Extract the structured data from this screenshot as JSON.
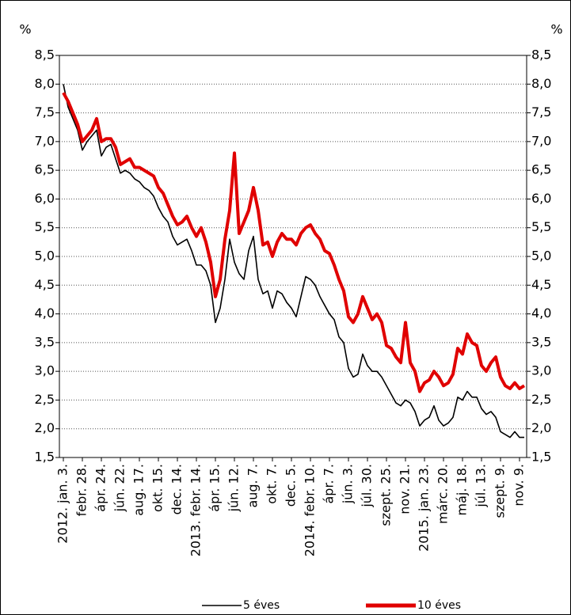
{
  "chart_data": {
    "type": "line",
    "y_unit_label": "%",
    "y2_unit_label": "%",
    "categories": [
      "2012. jan. 3.",
      null,
      null,
      null,
      "febr. 28.",
      null,
      null,
      null,
      "ápr. 24.",
      null,
      null,
      null,
      "jún. 22.",
      null,
      null,
      null,
      "aug. 17.",
      null,
      null,
      null,
      "okt. 15.",
      null,
      null,
      null,
      "dec. 14.",
      null,
      null,
      null,
      "2013. febr. 14.",
      null,
      null,
      null,
      "ápr. 15.",
      null,
      null,
      null,
      "jún. 12.",
      null,
      null,
      null,
      "aug. 7.",
      null,
      null,
      null,
      "okt. 7.",
      null,
      null,
      null,
      "dec. 5.",
      null,
      null,
      null,
      "2014. febr. 10.",
      null,
      null,
      null,
      "ápr. 7.",
      null,
      null,
      null,
      "jún. 3.",
      null,
      null,
      null,
      "júl. 30.",
      null,
      null,
      null,
      "szept. 25.",
      null,
      null,
      null,
      "nov. 21.",
      null,
      null,
      null,
      "2015. jan. 23.",
      null,
      null,
      null,
      "márc. 20.",
      null,
      null,
      null,
      "máj. 18.",
      null,
      null,
      null,
      "júl. 13.",
      null,
      null,
      null,
      "szept. 9.",
      null,
      null,
      null,
      "nov. 9.",
      null
    ],
    "series": [
      {
        "name": "5 éves",
        "color": "#000000",
        "values": [
          8.0,
          7.6,
          7.4,
          7.2,
          6.85,
          7.0,
          7.1,
          7.2,
          6.75,
          6.9,
          6.95,
          6.7,
          6.45,
          6.5,
          6.45,
          6.35,
          6.3,
          6.2,
          6.15,
          6.05,
          5.85,
          5.7,
          5.6,
          5.35,
          5.2,
          5.25,
          5.3,
          5.1,
          4.85,
          4.85,
          4.75,
          4.5,
          3.85,
          4.1,
          4.6,
          5.3,
          4.9,
          4.7,
          4.6,
          5.1,
          5.35,
          4.6,
          4.35,
          4.4,
          4.1,
          4.4,
          4.35,
          4.2,
          4.1,
          3.95,
          4.3,
          4.65,
          4.6,
          4.5,
          4.3,
          4.15,
          4.0,
          3.9,
          3.6,
          3.5,
          3.05,
          2.9,
          2.95,
          3.3,
          3.1,
          3.0,
          3.0,
          2.9,
          2.75,
          2.6,
          2.45,
          2.4,
          2.5,
          2.45,
          2.3,
          2.05,
          2.15,
          2.2,
          2.4,
          2.15,
          2.05,
          2.1,
          2.2,
          2.55,
          2.5,
          2.65,
          2.55,
          2.55,
          2.35,
          2.25,
          2.3,
          2.2,
          1.95,
          1.9,
          1.85,
          1.95,
          1.85,
          1.85
        ]
      },
      {
        "name": "10 éves",
        "color": "#e00000",
        "axis": "y2",
        "values": [
          7.85,
          7.7,
          7.5,
          7.3,
          7.0,
          7.1,
          7.2,
          7.4,
          7.0,
          7.05,
          7.05,
          6.9,
          6.6,
          6.65,
          6.7,
          6.55,
          6.55,
          6.5,
          6.45,
          6.4,
          6.2,
          6.1,
          5.9,
          5.7,
          5.55,
          5.6,
          5.7,
          5.5,
          5.35,
          5.5,
          5.25,
          4.9,
          4.3,
          4.6,
          5.3,
          5.8,
          6.8,
          5.4,
          5.6,
          5.8,
          6.2,
          5.8,
          5.2,
          5.25,
          5.0,
          5.25,
          5.4,
          5.3,
          5.3,
          5.2,
          5.4,
          5.5,
          5.55,
          5.4,
          5.3,
          5.1,
          5.05,
          4.85,
          4.6,
          4.4,
          3.95,
          3.85,
          4.0,
          4.3,
          4.1,
          3.9,
          4.0,
          3.85,
          3.45,
          3.4,
          3.25,
          3.15,
          3.85,
          3.15,
          3.0,
          2.65,
          2.8,
          2.85,
          3.0,
          2.9,
          2.75,
          2.8,
          2.95,
          3.4,
          3.3,
          3.65,
          3.5,
          3.45,
          3.1,
          3.0,
          3.15,
          3.25,
          2.9,
          2.75,
          2.7,
          2.8,
          2.7,
          2.75
        ]
      }
    ],
    "ylim": [
      1.5,
      8.5
    ],
    "yticks": [
      {
        "value": 1.5,
        "label": "1,5"
      },
      {
        "value": 2.0,
        "label": "2,0"
      },
      {
        "value": 2.5,
        "label": "2,5"
      },
      {
        "value": 3.0,
        "label": "3,0"
      },
      {
        "value": 3.5,
        "label": "3,5"
      },
      {
        "value": 4.0,
        "label": "4,0"
      },
      {
        "value": 4.5,
        "label": "4,5"
      },
      {
        "value": 5.0,
        "label": "5,0"
      },
      {
        "value": 5.5,
        "label": "5,5"
      },
      {
        "value": 6.0,
        "label": "6,0"
      },
      {
        "value": 6.5,
        "label": "6,5"
      },
      {
        "value": 7.0,
        "label": "7,0"
      },
      {
        "value": 7.5,
        "label": "7,5"
      },
      {
        "value": 8.0,
        "label": "8,0"
      },
      {
        "value": 8.5,
        "label": "8,5"
      }
    ],
    "y2lim": [
      1.5,
      8.5
    ],
    "y2ticks": [
      {
        "value": 1.5,
        "label": "1,5"
      },
      {
        "value": 2.0,
        "label": "2,0"
      },
      {
        "value": 2.5,
        "label": "2,5"
      },
      {
        "value": 3.0,
        "label": "3,0"
      },
      {
        "value": 3.5,
        "label": "3,5"
      },
      {
        "value": 4.0,
        "label": "4,0"
      },
      {
        "value": 4.5,
        "label": "4,5"
      },
      {
        "value": 5.0,
        "label": "5,0"
      },
      {
        "value": 5.5,
        "label": "5,5"
      },
      {
        "value": 6.0,
        "label": "6,0"
      },
      {
        "value": 6.5,
        "label": "6,5"
      },
      {
        "value": 7.0,
        "label": "7,0"
      },
      {
        "value": 7.5,
        "label": "7,5"
      },
      {
        "value": 8.0,
        "label": "8,0"
      },
      {
        "value": 8.5,
        "label": "8,5"
      }
    ],
    "grid": true,
    "legend": "bottom"
  }
}
